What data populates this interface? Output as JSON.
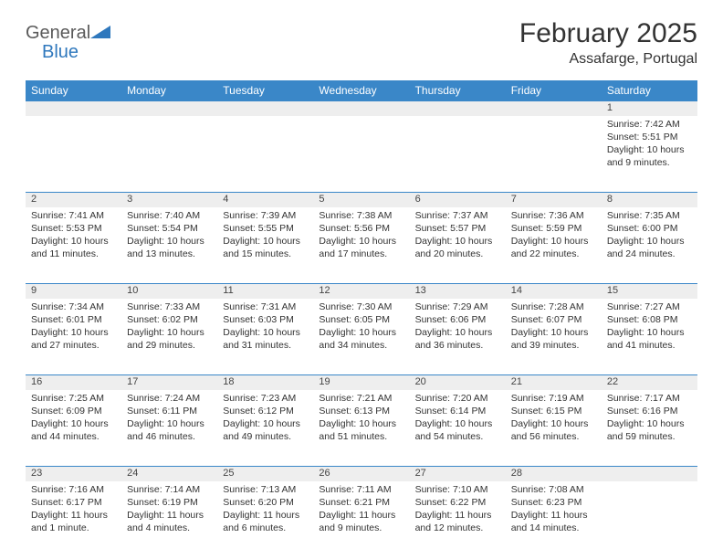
{
  "logo": {
    "general": "General",
    "blue": "Blue"
  },
  "title": "February 2025",
  "location": "Assafarge, Portugal",
  "colors": {
    "header_bg": "#3a87c8",
    "header_fg": "#ffffff",
    "daynum_bg": "#eeeeee",
    "border": "#3a87c8",
    "logo_gray": "#5a5a5a",
    "logo_blue": "#2f78bd"
  },
  "weekdays": [
    "Sunday",
    "Monday",
    "Tuesday",
    "Wednesday",
    "Thursday",
    "Friday",
    "Saturday"
  ],
  "weeks": [
    [
      null,
      null,
      null,
      null,
      null,
      null,
      {
        "n": "1",
        "sunrise": "Sunrise: 7:42 AM",
        "sunset": "Sunset: 5:51 PM",
        "daylight": "Daylight: 10 hours and 9 minutes."
      }
    ],
    [
      {
        "n": "2",
        "sunrise": "Sunrise: 7:41 AM",
        "sunset": "Sunset: 5:53 PM",
        "daylight": "Daylight: 10 hours and 11 minutes."
      },
      {
        "n": "3",
        "sunrise": "Sunrise: 7:40 AM",
        "sunset": "Sunset: 5:54 PM",
        "daylight": "Daylight: 10 hours and 13 minutes."
      },
      {
        "n": "4",
        "sunrise": "Sunrise: 7:39 AM",
        "sunset": "Sunset: 5:55 PM",
        "daylight": "Daylight: 10 hours and 15 minutes."
      },
      {
        "n": "5",
        "sunrise": "Sunrise: 7:38 AM",
        "sunset": "Sunset: 5:56 PM",
        "daylight": "Daylight: 10 hours and 17 minutes."
      },
      {
        "n": "6",
        "sunrise": "Sunrise: 7:37 AM",
        "sunset": "Sunset: 5:57 PM",
        "daylight": "Daylight: 10 hours and 20 minutes."
      },
      {
        "n": "7",
        "sunrise": "Sunrise: 7:36 AM",
        "sunset": "Sunset: 5:59 PM",
        "daylight": "Daylight: 10 hours and 22 minutes."
      },
      {
        "n": "8",
        "sunrise": "Sunrise: 7:35 AM",
        "sunset": "Sunset: 6:00 PM",
        "daylight": "Daylight: 10 hours and 24 minutes."
      }
    ],
    [
      {
        "n": "9",
        "sunrise": "Sunrise: 7:34 AM",
        "sunset": "Sunset: 6:01 PM",
        "daylight": "Daylight: 10 hours and 27 minutes."
      },
      {
        "n": "10",
        "sunrise": "Sunrise: 7:33 AM",
        "sunset": "Sunset: 6:02 PM",
        "daylight": "Daylight: 10 hours and 29 minutes."
      },
      {
        "n": "11",
        "sunrise": "Sunrise: 7:31 AM",
        "sunset": "Sunset: 6:03 PM",
        "daylight": "Daylight: 10 hours and 31 minutes."
      },
      {
        "n": "12",
        "sunrise": "Sunrise: 7:30 AM",
        "sunset": "Sunset: 6:05 PM",
        "daylight": "Daylight: 10 hours and 34 minutes."
      },
      {
        "n": "13",
        "sunrise": "Sunrise: 7:29 AM",
        "sunset": "Sunset: 6:06 PM",
        "daylight": "Daylight: 10 hours and 36 minutes."
      },
      {
        "n": "14",
        "sunrise": "Sunrise: 7:28 AM",
        "sunset": "Sunset: 6:07 PM",
        "daylight": "Daylight: 10 hours and 39 minutes."
      },
      {
        "n": "15",
        "sunrise": "Sunrise: 7:27 AM",
        "sunset": "Sunset: 6:08 PM",
        "daylight": "Daylight: 10 hours and 41 minutes."
      }
    ],
    [
      {
        "n": "16",
        "sunrise": "Sunrise: 7:25 AM",
        "sunset": "Sunset: 6:09 PM",
        "daylight": "Daylight: 10 hours and 44 minutes."
      },
      {
        "n": "17",
        "sunrise": "Sunrise: 7:24 AM",
        "sunset": "Sunset: 6:11 PM",
        "daylight": "Daylight: 10 hours and 46 minutes."
      },
      {
        "n": "18",
        "sunrise": "Sunrise: 7:23 AM",
        "sunset": "Sunset: 6:12 PM",
        "daylight": "Daylight: 10 hours and 49 minutes."
      },
      {
        "n": "19",
        "sunrise": "Sunrise: 7:21 AM",
        "sunset": "Sunset: 6:13 PM",
        "daylight": "Daylight: 10 hours and 51 minutes."
      },
      {
        "n": "20",
        "sunrise": "Sunrise: 7:20 AM",
        "sunset": "Sunset: 6:14 PM",
        "daylight": "Daylight: 10 hours and 54 minutes."
      },
      {
        "n": "21",
        "sunrise": "Sunrise: 7:19 AM",
        "sunset": "Sunset: 6:15 PM",
        "daylight": "Daylight: 10 hours and 56 minutes."
      },
      {
        "n": "22",
        "sunrise": "Sunrise: 7:17 AM",
        "sunset": "Sunset: 6:16 PM",
        "daylight": "Daylight: 10 hours and 59 minutes."
      }
    ],
    [
      {
        "n": "23",
        "sunrise": "Sunrise: 7:16 AM",
        "sunset": "Sunset: 6:17 PM",
        "daylight": "Daylight: 11 hours and 1 minute."
      },
      {
        "n": "24",
        "sunrise": "Sunrise: 7:14 AM",
        "sunset": "Sunset: 6:19 PM",
        "daylight": "Daylight: 11 hours and 4 minutes."
      },
      {
        "n": "25",
        "sunrise": "Sunrise: 7:13 AM",
        "sunset": "Sunset: 6:20 PM",
        "daylight": "Daylight: 11 hours and 6 minutes."
      },
      {
        "n": "26",
        "sunrise": "Sunrise: 7:11 AM",
        "sunset": "Sunset: 6:21 PM",
        "daylight": "Daylight: 11 hours and 9 minutes."
      },
      {
        "n": "27",
        "sunrise": "Sunrise: 7:10 AM",
        "sunset": "Sunset: 6:22 PM",
        "daylight": "Daylight: 11 hours and 12 minutes."
      },
      {
        "n": "28",
        "sunrise": "Sunrise: 7:08 AM",
        "sunset": "Sunset: 6:23 PM",
        "daylight": "Daylight: 11 hours and 14 minutes."
      },
      null
    ]
  ]
}
